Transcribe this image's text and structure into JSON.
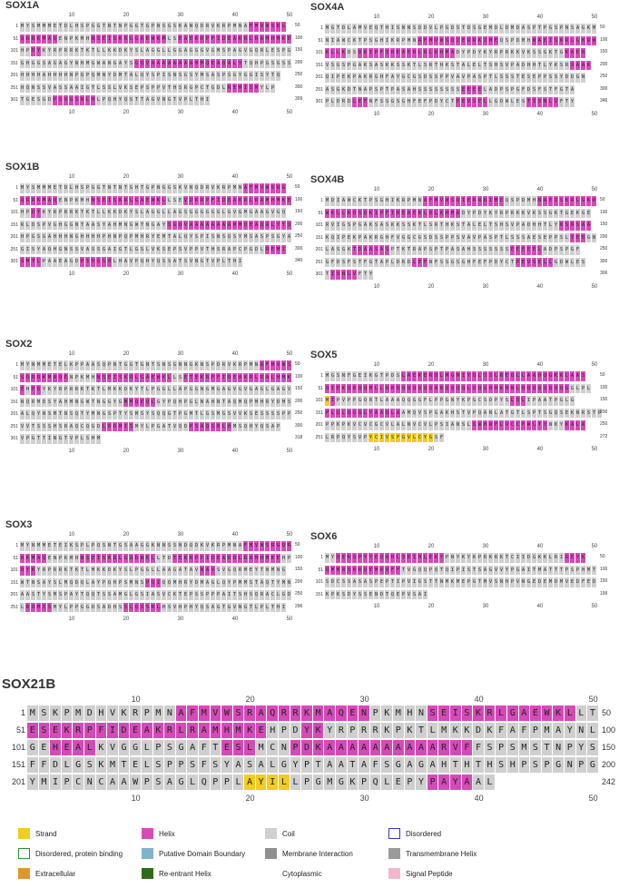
{
  "panels": [
    {
      "id": "sox1a",
      "title": "SOX1A",
      "length": "309",
      "rows": [
        {
          "num": "1",
          "seq": "MYSMMMETDLHSPGGTNTNPGGTGPNSGSKANQDRVKRPMNAFMVWSRG",
          "ss": "CCCCCCCCCCCCCCCCCCCCCCCCCCCCCCCCCCCCCCCCCCHHHHHHHH",
          "end": "50"
        },
        {
          "num": "51",
          "seq": "QRRKMAQENPKMHNSEISKRLGAEWKMLSEAEKRPFIDEAKRLRAMHMKE",
          "ss": "HHHHHHHCCCCCCHHHHHHHHHHHHHHCCHHHHHHHHHHHHHHHHHHHHH",
          "end": "100"
        },
        {
          "num": "101",
          "seq": "HPDYKYRPRRKTKTLLKKDKYSLAGGLLGGAGGGVGMSPAGVGQRLESPG",
          "ss": "CCHHCCCCCCCCCCCCCCCCCCCCCCCCCCCCCCCCCCCCCCCCCCCCCC",
          "end": "150"
        },
        {
          "num": "151",
          "seq": "GHGGSAGAGYNHMGWANGAYSGQVAAAAAAAAMMQEAQALYTQHPGSGSS",
          "ss": "CCCCCCCCCCCCCCCCCCCCCHHHHHHHHHHHHHHHHHHHHCCCCCCCCC",
          "end": "200"
        },
        {
          "num": "201",
          "seq": "HHHHAHHHHNPQPQMNYDMTALQYSPISNSGSYMSASPSGYGGISYTQ",
          "ss": "CCCCCCCCCCCCCCCCCCCCCCCCCCCCCCCCCCCCCCCCCCCCCCCC",
          "end": "250"
        },
        {
          "num": "251",
          "seq": "HQNSSVASSAAIGTLSSLVKSEPSPPVTHSRGPCTGDLREMISMYLP",
          "ss": "CCCCCCCCCCCCCCCCCCCCCCCCCCCCCCCCCCCCCCHHHHHHCCC",
          "end": "300"
        },
        {
          "num": "301",
          "seq": "TGESGDPSVGSNLHLPQHYQSTTAGVNGTVPLTHI",
          "ss": "CCCCCCHHHHHHHHCCCCCCCCCCCCCCCCCCCCC",
          "end": "309"
        }
      ],
      "ticks": [
        "10",
        "20",
        "30",
        "40",
        "50"
      ]
    },
    {
      "id": "sox4a",
      "title": "SOX4A",
      "length": "346",
      "rows": [
        {
          "num": "1",
          "seq": "MGTDLAMVEQTHISNNSDDVLPGDSTDSGEMDLDMDASPTPGSPNSAGKM",
          "ss": "CCCCCCCCCCCCCCCCCCCCCCCCCCCCCCCCCCCCCCCCCCCCCCCCCC",
          "end": "50"
        },
        {
          "num": "51",
          "seq": "NIAWCKTPSGHIKRPMNAFMVWSQIERRKIMEQSPDMHNAEISKRLGKRW",
          "ss": "CCCCCCCCCCCCCCCCCHHHHHHHHHHHHHHHCCCCCCHHHHHHHHHHHH",
          "end": "100"
        },
        {
          "num": "101",
          "seq": "KLLKDSDKIPFIREAERLRLKHMADYPDYKYRPRKKVKSSGKTGKAER",
          "ss": "HHHHCCHHHHHHHHHHHHHHHHHHCCCCCCCCCCCCCCCCCCCCHHHH",
          "end": "150"
        },
        {
          "num": "151",
          "seq": "VSGSPGAKSASKKSSKTLSRTHKSTALELTSHSVPADHHTLYKSRSAAK",
          "ss": "CCCCCCCCCCCCCCCCCCCCCCCCCCCCCCCCCCCCCCCCCCCCCHHHH",
          "end": "200"
        },
        {
          "num": "201",
          "seq": "QIPEKPAKRGHFAYGCGSDSSPPVAVPASPTLSSSTESEPPSSYDDGN",
          "ss": "CCCCCCCCCCCCCCCCCCCCCCCCCCCCCCCCCCCCCCCCCCCCCCCC",
          "end": "250"
        },
        {
          "num": "251",
          "seq": "ASGKDTNAPSPTPASAHSSSSSSSSEEEELADPSPGFDSFSTFGTA",
          "ss": "CCCCCCCCCCCCCCCCCCCCCCCCCHHHHCCCCCCCCCCCCCCCCC",
          "end": "300"
        },
        {
          "num": "301",
          "seq": "PLDRDLEFNFSSGSGHFEFPDYCTPEVSELLGDWLESTISNLVFTY",
          "ss": "CCCCCHHHCCCCCCCCCCCCCCCCHHHHHHCCCCCCCHHHHHHCCC",
          "end": "346"
        }
      ],
      "ticks": [
        "10",
        "20",
        "30",
        "40",
        "50"
      ]
    },
    {
      "id": "sox1b",
      "title": "SOX1B",
      "length": "340",
      "rows": [
        {
          "num": "1",
          "seq": "MYSMMMETDLHSPGGTNTNTGHTGPNGGSKVNQDRVKRPMNAFMVWSRG",
          "ss": "CCCCCCCCCCCCCCCCCCCCCCCCCCCCCCCCCCCCCCCCCHHHHHHHHH",
          "end": "50"
        },
        {
          "num": "51",
          "seq": "QRRKMAQENPKMHNSEISKRLGAEWKLLSEVDKRPFIDEAKRLRAMHMKE",
          "ss": "HHHHHHHCCCCCCHHHHHHHHHHHHHHCCCHHHHHHHHHHHHHHHHHHHH",
          "end": "100"
        },
        {
          "num": "101",
          "seq": "HPDYKYRPRRKTKTLLKKDKYSLAGGLLAGSGGGGGGLGVGMGAAGVGQ",
          "ss": "CCHHCCCCCCCCCCCCCCCCCCCCCCCCCCCCCCCCCCCCCCCCCCCCCC",
          "end": "150"
        },
        {
          "num": "151",
          "seq": "RLDSPVGHGGNTAASYAHMNGWTNGAYSGQVAAAAAAAAMMQEAQALYTQ",
          "ss": "CCCCCCCCCCCCCCCCCCCCCCCCCCCHHHHHHHHHHHHHHHHHHHHHHH",
          "end": "200"
        },
        {
          "num": "201",
          "seq": "HPGSGAHHHNGHHHHPHNPQPMHRYEMTALQYSPISNSQSYMSASPSGYA",
          "ss": "CCCCCCCCCCCCCCCCCCCCCCCCCCCCCCCCCCCCCCCCCCCCCCCCCC",
          "end": "250"
        },
        {
          "num": "251",
          "seq": "GISYAQHGNSSVASSGAIGTLGSLVKSEPSVPPVTHSRAPCPGDLREMI",
          "ss": "CCCCCCCCCCCCCCCCCCCCCCCCCCCCCCCCCCCCCCCCCCCCCHHHHH",
          "end": "300"
        },
        {
          "num": "301",
          "seq": "SMYLPAAEAGDPSVGSHLHAVPQHYQSSATSVNGTVPLTHI",
          "ss": "HHHHCCCCCCCHHHHHHCCCCCCCCCCCCCCCCCCCCCCCC",
          "end": "340"
        }
      ],
      "ticks": [
        "10",
        "20",
        "30",
        "40",
        "50"
      ]
    },
    {
      "id": "sox4b",
      "title": "SOX4B",
      "length": "306",
      "rows": [
        {
          "num": "1",
          "seq": "MDIAWCKTPSGHIKRPMNAFMVWSQIERRKIMEQSPDMHNAEISKRLGKR",
          "ss": "CCCCCCCCCCCCCCCCCCHHHHHHHHHHHHHHHCCCCCCHHHHHHHHHHH",
          "end": "50"
        },
        {
          "num": "51",
          "seq": "WKLLKDSDKIPFIREAERLRLKHMADYPDYKYRPRKKVKSSGKTGEKGE",
          "ss": "HHHHHHHHHHHHHHHHHHHHHHHHHCCCCCCCCCCCCCCCCCCCCCCCCC",
          "end": "100"
        },
        {
          "num": "101",
          "seq": "RVIGSPGAKSASKKSSKTLSRTHKSTALELTSHSVPADHHTLYKSRSAA",
          "ss": "CCCCCCCCCCCCCCCCCCCCCCCCCCCCCCCCCCCCCCCCCCCHHHHHHH",
          "end": "150"
        },
        {
          "num": "151",
          "seq": "KQIPEKPAKRGHFVGGCGSDSSPPSVAVPASPTLSSSAESEPPSLYEDGN",
          "ss": "CCCCCCCCCCCCCCCCCCCCCCCCCCCCCCCCCCCCCCCCCCCCCHHHCC",
          "end": "200"
        },
        {
          "num": "201",
          "seq": "LASGKTDAASASPTKTRAPSPTPASAHSSSSSSSEEEEELADPSPGF",
          "ss": "CCCCCHHHHHHHCCCCCCCCCCCCCCCCCCCCCCHHHHHHCCCCCCC",
          "end": "250"
        },
        {
          "num": "251",
          "seq": "GFDSFSTFGTAPLDRDLEFNFSSGSGHFEFPDYCTPEVSELLGDWLES",
          "ss": "CCCCCCCCCCCCCCCCHHHCCCCCCCCCCCCCCCCHHHHHHHCCCCCC",
          "end": "300"
        },
        {
          "num": "301",
          "seq": "TISNLVFTY",
          "ss": "CHHHHHCCC",
          "end": "306"
        }
      ],
      "ticks": [
        "10",
        "20",
        "30",
        "40",
        "50"
      ]
    },
    {
      "id": "sox2",
      "title": "SOX2",
      "length": "318",
      "rows": [
        {
          "num": "1",
          "seq": "MYNMMETELKPPAASQPNTGGTGNTSNSGNNGKNSPDRVKRPMNAFMVWS",
          "ss": "CCCCCCCCCCCCCCCCCCCCCCCCCCCCCCCCCCCCCCCCCCCCHHHHHH",
          "end": "50"
        },
        {
          "num": "51",
          "seq": "GQRRKMAQENPKMHNSEISKRLGAEWKLLSETEKRPFIDEAKRLRALHMK",
          "ss": "HHHHHHHHHCCCCCHHHHHHHHHHHHHHCCHHHHHHHHHHHHHHHHHHHH",
          "end": "100"
        },
        {
          "num": "101",
          "seq": "EHPDYKYRPRRKTKTLMKKDKYTLPGGLLAPGGNGMGAGVGVGAGLGAGV",
          "ss": "HCHHCCCCCCCCCCCCCCCCCCCCCCCCCCCCCCCCCCCCCCCCCCCCCC",
          "end": "150"
        },
        {
          "num": "151",
          "seq": "NQRMDSYAHMNGWTNGGYGMMQEQLGYPQHPGLNAHNTAQMQPMHRYDMS",
          "ss": "CCCCCCCCCCCCCCCCCCCHHHHHHCCCCCCCCCCCCCCCCCCCCCCCCC",
          "end": "200"
        },
        {
          "num": "201",
          "seqt": "",
          "seq": "ALQYNSMTNSQTYMNGSPTYSMSYSQQGTPGMTLGSMGSVVKSESSSSPP",
          "ss": "CCCCCCCCCCCCCCCCCCCCCCCCCCCCCCCCCCCCCCCCCCCCCCCCCC",
          "end": "250"
        },
        {
          "num": "251",
          "seq": "VVTSSSHSRAQCQGDLRDMISMYLPGATVQDPSAQSRLHMSQHYQSAP",
          "ss": "CCCCCCCCCCCCCCCHHHHHHCCCCCCCCCCHHHHHHHHCCCCCCCCC",
          "end": "300"
        },
        {
          "num": "301",
          "seq": "VPGTTINGTVPLSHM",
          "ss": "CCCCCCCCCCCCCCC",
          "end": "318"
        }
      ],
      "ticks": [
        "10",
        "20",
        "30",
        "40",
        "50"
      ]
    },
    {
      "id": "sox5",
      "title": "SOX5",
      "length": "272",
      "rows": [
        {
          "num": "1",
          "seq": "MGSNFGEIKGTPDSLAEKERQLMGMIYQLSSLREQLLAAHQGKKLAAS",
          "ss": "CCCCCCCCCCCCCCHHHHHHHHHHHHHHHHHHHHHHHHHHHHHHHHHH",
          "end": "50"
        },
        {
          "num": "51",
          "seq": "QIEKQRQQMLLARQQQQQQQARQQQQLQQGHHKHNLQQQQQQVQGGLPL",
          "ss": "HHHHHHHHHHHHHHHHHHHHHHHHHHHHHHHHHHHHHHHHHHHHHCCCCC",
          "end": "100"
        },
        {
          "num": "101",
          "seq": "MIPVPPGQRTLAAAQQGGFLPPGNYKPGCSDPYSLQLIPAATPGLG",
          "ss": "SHCCCCCCCCCCCCCCCCCCCCCCCCCCCCCCCCHHHCCCCCCCCCCC",
          "end": "150"
        },
        {
          "num": "151",
          "seq": "PLQLQQQLYAAQLAAMQVSPGAKHSTVPQANLATGTLSPTSGQSEKNRSTP",
          "ss": "HHHHHHHHHHHHHHCCCCCCCCCCCCCCCCCCCCCCCCCCCCCCCCCCCC",
          "end": "200"
        },
        {
          "num": "201",
          "seq": "PPKPKVCVCGCVLALNVCVLPSIANSLSWHWFLVCCFWLTYNKYKALA",
          "ss": "CCCCCCCCCCCCCCCCCCCCCCCCCCCHHHHHHHHHHHHHHCCCHHHH",
          "end": "250"
        },
        {
          "num": "251",
          "seq": "LRPQYSVPYCIVSFGVLCYGSF",
          "ss": "CCCCCCCCSSSSSSSSSSSSCC",
          "end": "272"
        }
      ],
      "ticks": [
        "10",
        "20",
        "30",
        "40",
        "50"
      ]
    },
    {
      "id": "sox3",
      "title": "SOX3",
      "length": "296",
      "rows": [
        {
          "num": "1",
          "seq": "MYNMMETEIKSPLPQSNTGSAAGGKNNSSNDQDKVKRPMNAFMVWSRGQR",
          "ss": "CCCCCCCCCCCCCCCCCCCCCCCCCCCCCCCCCCCCCCCCCHHHHHHHHH",
          "end": "50"
        },
        {
          "num": "51",
          "seq": "RKMAQENPKMHNSEISKRLGADWKLLTDTEKRPFIDEAKRLRAMHMKEHP",
          "ss": "HHHHHCCCCCCHHHHHHHHHHHHHHCCCHHHHHHHHHHHHHHHHHHHHCC",
          "end": "100"
        },
        {
          "num": "101",
          "seq": "DYKYRPRRKTKTLMKKDKYSLPGGLLAAGATAVNAVSVGQRMEYTNMNG",
          "ss": "HHHCCCCCCCCCCCCCCCCCCCCCCCCCCCCCCHHHCCCCCCCCCCCCCC",
          "end": "150"
        },
        {
          "num": "151",
          "seq": "WTNSAYSLMQDQLAYPQHPSMNSPQIQQMHRYDMAGLQYPMMSTAQTYMN",
          "ss": "CCCCCCCCCCCCCCCCCCCCCCCHHHCCCCCCCCCCCCCCCCCCCCCCCC",
          "end": "200"
        },
        {
          "num": "201",
          "seq": "AASTYSMSPAYTQQTSSAMGLGSIASVCKTEPSSPPPAITSHSQRACLGD",
          "ss": "CCCCCCCCCCCCCCCCCCCCCCCCCCCCCCCCCCCCCCCCCCCCCCCCCC",
          "end": "250"
        },
        {
          "num": "251",
          "seq": "LRDMISMYLPPGGDSADHSSLQSSRLHSVHPHYQSAGTGVNGTLPLTHI",
          "ss": "CHHHHHCCCCCCCCCCCCCHHHHHHHCCCCCCCCCCCCCCCCCCCCCCC",
          "end": "296"
        }
      ],
      "ticks": [
        "10",
        "20",
        "30",
        "40",
        "50"
      ]
    },
    {
      "id": "sox6",
      "title": "SOX6",
      "length": "199",
      "rows": [
        {
          "num": "1",
          "seq": "MYQEKQPYYEQARLSKIHLEKYPNYKYKPRKRKTCIIDGKKLRIGEYK",
          "ss": "CCHHHHHHHHHHHHHHHHHHHHCCCCCCCCCCCCCCCCCCCCCCHHHHHH",
          "end": "50"
        },
        {
          "num": "51",
          "seq": "QMMRSRRQEMRQFFTVGQQPQTQIPISTSAGVVYPGAITMATTTPSPHMT",
          "ss": "HHHHHHHHHHHHHHCCCCCCCCCCCCCCCCCCCCCCCCCCCCCCCCCCCC",
          "end": "100"
        },
        {
          "num": "101",
          "seq": "SDCSSASASPEPTIPVIGSTTNMKMEPGTMVSNHPVNGEDEMDMVEDFED",
          "ss": "CCCCCCCCCCCCCCCCCCCCCCCCCCCCCCCCCCCCCCCCCCCCCCCCCC",
          "end": "150"
        },
        {
          "num": "151",
          "seq": "KPKSDYSSENDTQEPVSAI",
          "ss": "CCCCCCCCCCCCCCCCCCC",
          "end": "199"
        }
      ],
      "ticks": [
        "10",
        "20",
        "30",
        "40",
        "50"
      ]
    }
  ],
  "sox21b": {
    "title": "SOX21B",
    "ticks": [
      "10",
      "20",
      "30",
      "40",
      "50"
    ],
    "rows": [
      {
        "num": "1",
        "seq": "MSKPMDHVKRPMNAFMVWSRAQRRKMAQENPKMHNSEISKRLGAEWKLLT",
        "ss": "CCCCCCCCCCCCCHHHHHHHHHHHHHHHHHCCCCCHHHHHHHHHHHHHCC",
        "end": "50"
      },
      {
        "num": "51",
        "seq": "ESEKRPFIDEAKRLRAMHMKEHPDYKYRPRRKPKTLMKKDKFAFPMAYNL",
        "ss": "HHHHHHHHHHHHHHHHHHHHHCCCHHCCCCCCCCCCCCCCCCCCCCCCCC",
        "end": "100"
      },
      {
        "num": "101",
        "seq": "GEHEALKVGGLPSGAFTESLMCNPDKAAAAAAAAAARVFFSPSMSTNPYS",
        "ss": "CCHHHHCCCCCCCCCCCHHHCCCHHHHHHHHHHHHHHHHCCCCCCCCCCC",
        "end": "150"
      },
      {
        "num": "151",
        "seq": "FFDLGSKMTELSPPSFSYASALGYPTAATAFSGAGAHTHTHSHPSPGNPG",
        "ss": "CCCCCCCCCCCCCCCCCCCCCCCCCCCCCCCCCCCCCCCCCCCCCCCCCC",
        "end": "200"
      },
      {
        "num": "201",
        "seq": "YMIPCNCAAWPSAGLQPPLAYILLPGMGKPQLEPYPAYAAL",
        "ss": "CCCCCCCCCCCCCCCCCCCSSSSCCCCCCCCCCCCHHHHCC",
        "end": "242"
      }
    ]
  },
  "legend": [
    {
      "label": "Strand",
      "color": "#f2cc1f",
      "style": "fill"
    },
    {
      "label": "Helix",
      "color": "#d64ab8",
      "style": "fill"
    },
    {
      "label": "Coil",
      "color": "#d0d0d0",
      "style": "fill"
    },
    {
      "label": "Disordered",
      "color": "#3333cc",
      "style": "outline"
    },
    {
      "label": "Disordered, protein binding",
      "color": "#2f8f2f",
      "style": "outline"
    },
    {
      "label": "Putative Domain Boundary",
      "color": "#7fb3cc",
      "style": "fill"
    },
    {
      "label": "Membrane Interaction",
      "color": "#8f8f8f",
      "style": "fill"
    },
    {
      "label": "Transmembrane Helix",
      "color": "#9a9a9a",
      "style": "fill"
    },
    {
      "label": "Extracellular",
      "color": "#e0962e",
      "style": "fill"
    },
    {
      "label": "Re-entrant Helix",
      "color": "#2f6a1f",
      "style": "fill"
    },
    {
      "label": "Cytoplasmic",
      "color": "#ffffff",
      "style": "none"
    },
    {
      "label": "Signal Peptide",
      "color": "#f0b8c8",
      "style": "fill"
    }
  ]
}
